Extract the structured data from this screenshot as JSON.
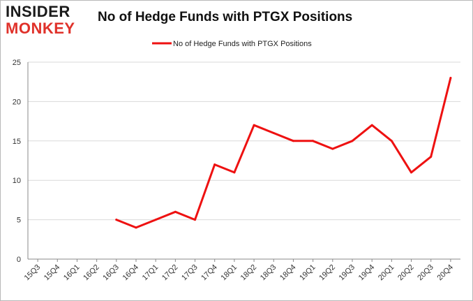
{
  "brand": {
    "line1": "INSIDER",
    "line2": "MONKEY"
  },
  "chart_data": {
    "type": "line",
    "title": "No of Hedge Funds with PTGX Positions",
    "xlabel": "",
    "ylabel": "",
    "ylim": [
      0,
      25
    ],
    "yticks": [
      0,
      5,
      10,
      15,
      20,
      25
    ],
    "grid": true,
    "legend_position": "top",
    "categories": [
      "15Q3",
      "15Q4",
      "16Q1",
      "16Q2",
      "16Q3",
      "16Q4",
      "17Q1",
      "17Q2",
      "17Q3",
      "17Q4",
      "18Q1",
      "18Q2",
      "18Q3",
      "18Q4",
      "19Q1",
      "19Q2",
      "19Q3",
      "19Q4",
      "20Q1",
      "20Q2",
      "20Q3",
      "20Q4"
    ],
    "series": [
      {
        "name": "No of Hedge Funds with PTGX Positions",
        "color": "#ee1111",
        "values": [
          null,
          null,
          null,
          null,
          5,
          4,
          5,
          6,
          5,
          12,
          11,
          17,
          16,
          15,
          15,
          14,
          15,
          17,
          15,
          11,
          13,
          23
        ]
      }
    ]
  }
}
